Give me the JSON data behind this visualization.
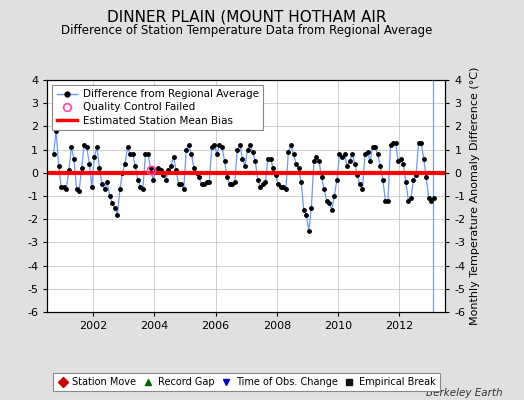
{
  "title": "DINNER PLAIN (MOUNT HOTHAM AIR",
  "subtitle": "Difference of Station Temperature Data from Regional Average",
  "ylabel": "Monthly Temperature Anomaly Difference (°C)",
  "bias_value": 0.0,
  "ylim": [
    -6,
    4
  ],
  "xlim_start": 2000.5,
  "xlim_end": 2013.5,
  "xticks": [
    2002,
    2004,
    2006,
    2008,
    2010,
    2012
  ],
  "yticks": [
    -6,
    -5,
    -4,
    -3,
    -2,
    -1,
    0,
    1,
    2,
    3,
    4
  ],
  "background_color": "#e0e0e0",
  "plot_bg_color": "#ffffff",
  "line_color": "#6699ff",
  "marker_color": "#000000",
  "bias_color": "#ff0000",
  "grid_color": "#bbbbbb",
  "title_fontsize": 11,
  "subtitle_fontsize": 8.5,
  "legend_fontsize": 7.5,
  "tick_fontsize": 8,
  "qc_fail_x": [
    2003.875
  ],
  "qc_fail_y": [
    0.1
  ],
  "time_of_obs_x": [
    2013.1
  ],
  "watermark": "Berkeley Earth",
  "series_x": [
    2000.708,
    2000.792,
    2000.875,
    2000.958,
    2001.042,
    2001.125,
    2001.208,
    2001.292,
    2001.375,
    2001.458,
    2001.542,
    2001.625,
    2001.708,
    2001.792,
    2001.875,
    2001.958,
    2002.042,
    2002.125,
    2002.208,
    2002.292,
    2002.375,
    2002.458,
    2002.542,
    2002.625,
    2002.708,
    2002.792,
    2002.875,
    2002.958,
    2003.042,
    2003.125,
    2003.208,
    2003.292,
    2003.375,
    2003.458,
    2003.542,
    2003.625,
    2003.708,
    2003.792,
    2003.875,
    2003.958,
    2004.042,
    2004.125,
    2004.208,
    2004.292,
    2004.375,
    2004.458,
    2004.542,
    2004.625,
    2004.708,
    2004.792,
    2004.875,
    2004.958,
    2005.042,
    2005.125,
    2005.208,
    2005.292,
    2005.375,
    2005.458,
    2005.542,
    2005.625,
    2005.708,
    2005.792,
    2005.875,
    2005.958,
    2006.042,
    2006.125,
    2006.208,
    2006.292,
    2006.375,
    2006.458,
    2006.542,
    2006.625,
    2006.708,
    2006.792,
    2006.875,
    2006.958,
    2007.042,
    2007.125,
    2007.208,
    2007.292,
    2007.375,
    2007.458,
    2007.542,
    2007.625,
    2007.708,
    2007.792,
    2007.875,
    2007.958,
    2008.042,
    2008.125,
    2008.208,
    2008.292,
    2008.375,
    2008.458,
    2008.542,
    2008.625,
    2008.708,
    2008.792,
    2008.875,
    2008.958,
    2009.042,
    2009.125,
    2009.208,
    2009.292,
    2009.375,
    2009.458,
    2009.542,
    2009.625,
    2009.708,
    2009.792,
    2009.875,
    2009.958,
    2010.042,
    2010.125,
    2010.208,
    2010.292,
    2010.375,
    2010.458,
    2010.542,
    2010.625,
    2010.708,
    2010.792,
    2010.875,
    2010.958,
    2011.042,
    2011.125,
    2011.208,
    2011.292,
    2011.375,
    2011.458,
    2011.542,
    2011.625,
    2011.708,
    2011.792,
    2011.875,
    2011.958,
    2012.042,
    2012.125,
    2012.208,
    2012.292,
    2012.375,
    2012.458,
    2012.542,
    2012.625,
    2012.708,
    2012.792,
    2012.875,
    2012.958,
    2013.042,
    2013.125
  ],
  "series_y": [
    0.8,
    1.8,
    0.3,
    -0.6,
    -0.6,
    -0.7,
    0.1,
    1.1,
    0.6,
    -0.7,
    -0.8,
    0.2,
    1.2,
    1.1,
    0.4,
    -0.6,
    0.7,
    1.1,
    0.2,
    -0.5,
    -0.7,
    -0.4,
    -1.0,
    -1.3,
    -1.5,
    -1.8,
    -0.7,
    0.0,
    0.4,
    1.1,
    0.8,
    0.8,
    0.3,
    -0.3,
    -0.6,
    -0.7,
    0.8,
    0.8,
    0.2,
    -0.3,
    0.1,
    0.2,
    0.1,
    -0.1,
    -0.3,
    0.1,
    0.3,
    0.7,
    0.1,
    -0.5,
    -0.5,
    -0.7,
    1.0,
    1.2,
    0.8,
    0.2,
    0.0,
    -0.2,
    -0.5,
    -0.5,
    -0.4,
    -0.4,
    1.1,
    1.2,
    0.8,
    1.2,
    1.1,
    0.5,
    -0.2,
    -0.5,
    -0.5,
    -0.4,
    1.0,
    1.2,
    0.6,
    0.3,
    1.0,
    1.2,
    0.9,
    0.5,
    -0.3,
    -0.6,
    -0.5,
    -0.4,
    0.6,
    0.6,
    0.2,
    -0.1,
    -0.5,
    -0.6,
    -0.6,
    -0.7,
    0.9,
    1.2,
    0.8,
    0.4,
    0.2,
    -0.4,
    -1.6,
    -1.8,
    -2.5,
    -1.5,
    0.5,
    0.7,
    0.5,
    -0.2,
    -0.7,
    -1.2,
    -1.3,
    -1.6,
    -1.0,
    -0.3,
    0.8,
    0.7,
    0.8,
    0.3,
    0.5,
    0.8,
    0.4,
    -0.1,
    -0.5,
    -0.7,
    0.8,
    0.9,
    0.5,
    1.1,
    1.1,
    0.8,
    0.3,
    -0.3,
    -1.2,
    -1.2,
    1.2,
    1.3,
    1.3,
    0.5,
    0.6,
    0.4,
    -0.4,
    -1.2,
    -1.1,
    -0.3,
    -0.1,
    1.3,
    1.3,
    0.6,
    -0.2,
    -1.1,
    -1.2,
    -1.1
  ]
}
